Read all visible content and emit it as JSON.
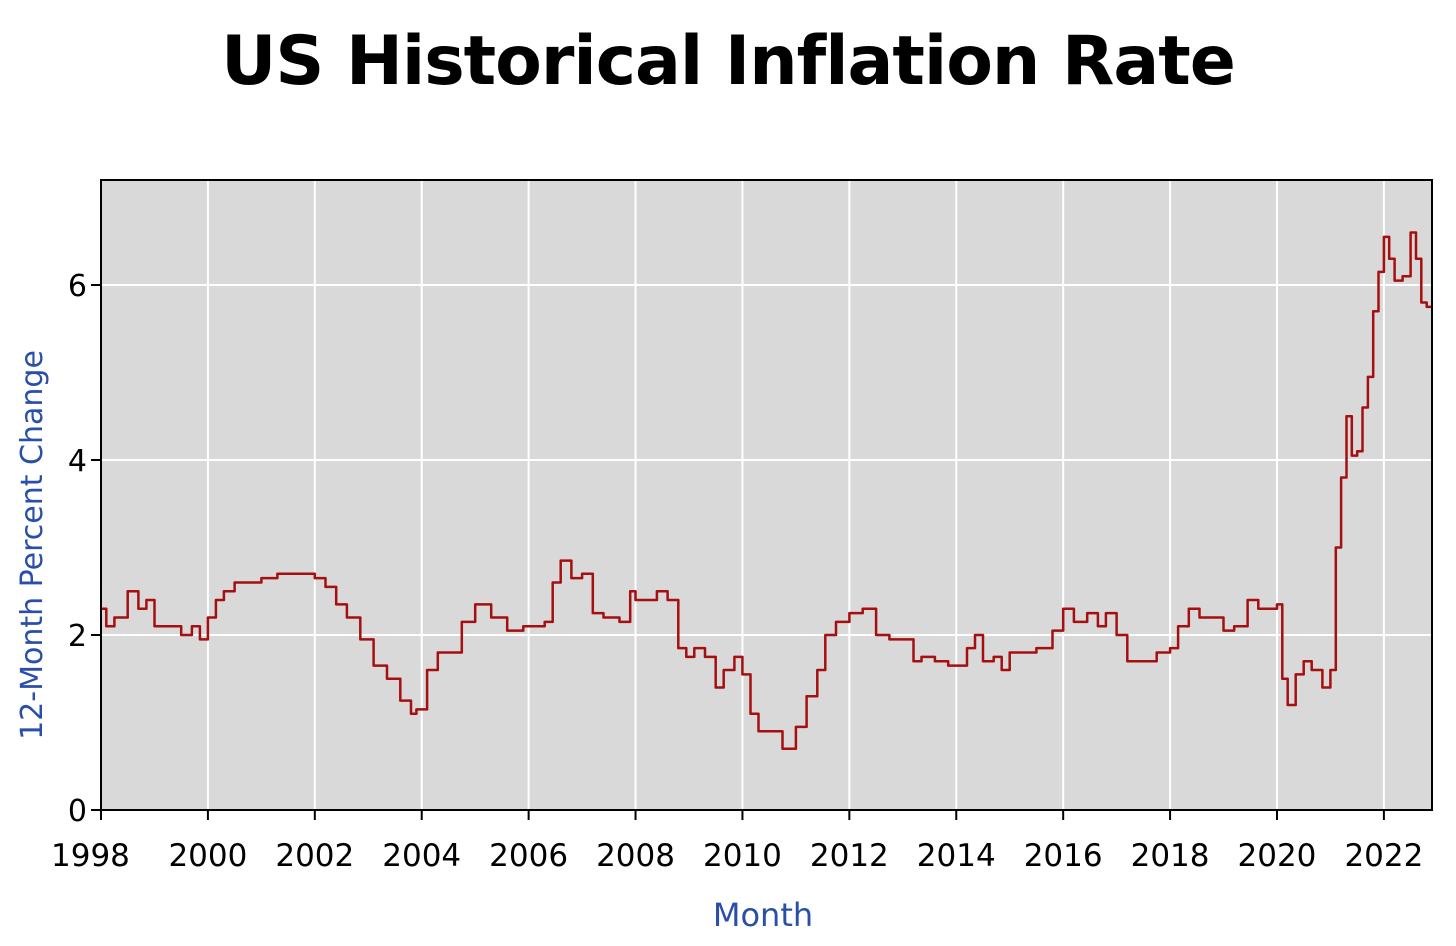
{
  "page": {
    "title": "US Historical Inflation Rate"
  },
  "chart_data": {
    "type": "line",
    "title": "US Historical Inflation Rate",
    "xlabel": "Month",
    "ylabel": "12-Month Percent Change",
    "xlim": [
      1998,
      2022.9
    ],
    "ylim": [
      0,
      7.2
    ],
    "x_ticks": [
      1998,
      2000,
      2002,
      2004,
      2006,
      2008,
      2010,
      2012,
      2014,
      2016,
      2018,
      2020,
      2022
    ],
    "x_tick_labels": [
      "1998",
      "2000",
      "2002",
      "2004",
      "2006",
      "2008",
      "2010",
      "2012",
      "2014",
      "2016",
      "2018",
      "2020",
      "2022"
    ],
    "y_ticks": [
      0,
      2,
      4,
      6
    ],
    "y_tick_labels": [
      "0",
      "2",
      "4",
      "6"
    ],
    "grid": true,
    "colors": {
      "plot_bg": "#d9d9d9",
      "grid": "#ffffff",
      "line": "#a50f0f",
      "axis_label": "#2a4fa8",
      "tick_text": "#000000"
    },
    "series": [
      {
        "x": [
          1998.0,
          1998.1,
          1998.25,
          1998.4,
          1998.5,
          1998.55,
          1998.7,
          1998.85,
          1999.0,
          1999.15,
          1999.3,
          1999.5,
          1999.7,
          1999.85,
          2000.0,
          2000.15,
          2000.3,
          2000.5,
          2000.75,
          2001.0,
          2001.3,
          2001.55,
          2001.8,
          2002.0,
          2002.2,
          2002.4,
          2002.6,
          2002.85,
          2003.1,
          2003.35,
          2003.6,
          2003.8,
          2003.9,
          2004.1,
          2004.3,
          2004.5,
          2004.75,
          2005.0,
          2005.3,
          2005.6,
          2005.9,
          2006.1,
          2006.3,
          2006.45,
          2006.6,
          2006.8,
          2007.0,
          2007.2,
          2007.4,
          2007.7,
          2007.9,
          2008.0,
          2008.2,
          2008.4,
          2008.6,
          2008.8,
          2008.95,
          2009.1,
          2009.3,
          2009.5,
          2009.65,
          2009.85,
          2010.0,
          2010.15,
          2010.3,
          2010.5,
          2010.75,
          2010.85,
          2011.0,
          2011.2,
          2011.4,
          2011.55,
          2011.75,
          2012.0,
          2012.25,
          2012.5,
          2012.75,
          2013.0,
          2013.2,
          2013.35,
          2013.6,
          2013.85,
          2014.0,
          2014.2,
          2014.35,
          2014.5,
          2014.7,
          2014.85,
          2015.0,
          2015.2,
          2015.5,
          2015.8,
          2016.0,
          2016.2,
          2016.45,
          2016.65,
          2016.8,
          2017.0,
          2017.2,
          2017.45,
          2017.75,
          2018.0,
          2018.15,
          2018.35,
          2018.55,
          2018.8,
          2019.0,
          2019.2,
          2019.45,
          2019.65,
          2019.85,
          2020.0,
          2020.1,
          2020.2,
          2020.35,
          2020.5,
          2020.65,
          2020.85,
          2021.0,
          2021.1,
          2021.2,
          2021.3,
          2021.4,
          2021.5,
          2021.6,
          2021.7,
          2021.8,
          2021.9,
          2022.0,
          2022.1,
          2022.2,
          2022.35,
          2022.5,
          2022.6,
          2022.7,
          2022.8,
          2022.9
        ],
        "y": [
          2.3,
          2.1,
          2.2,
          2.2,
          2.5,
          2.5,
          2.3,
          2.4,
          2.1,
          2.1,
          2.1,
          2.0,
          2.1,
          1.95,
          2.2,
          2.4,
          2.5,
          2.6,
          2.6,
          2.65,
          2.7,
          2.7,
          2.7,
          2.65,
          2.55,
          2.35,
          2.2,
          1.95,
          1.65,
          1.5,
          1.25,
          1.1,
          1.15,
          1.6,
          1.8,
          1.8,
          2.15,
          2.35,
          2.2,
          2.05,
          2.1,
          2.1,
          2.15,
          2.6,
          2.85,
          2.65,
          2.7,
          2.25,
          2.2,
          2.15,
          2.5,
          2.4,
          2.4,
          2.5,
          2.4,
          1.85,
          1.75,
          1.85,
          1.75,
          1.4,
          1.6,
          1.75,
          1.55,
          1.1,
          0.9,
          0.9,
          0.7,
          0.7,
          0.95,
          1.3,
          1.6,
          2.0,
          2.15,
          2.25,
          2.3,
          2.0,
          1.95,
          1.95,
          1.7,
          1.75,
          1.7,
          1.65,
          1.65,
          1.85,
          2.0,
          1.7,
          1.75,
          1.6,
          1.8,
          1.8,
          1.85,
          2.05,
          2.3,
          2.15,
          2.25,
          2.1,
          2.25,
          2.0,
          1.7,
          1.7,
          1.8,
          1.85,
          2.1,
          2.3,
          2.2,
          2.2,
          2.05,
          2.1,
          2.4,
          2.3,
          2.3,
          2.35,
          1.5,
          1.2,
          1.55,
          1.7,
          1.6,
          1.4,
          1.6,
          3.0,
          3.8,
          4.5,
          4.05,
          4.1,
          4.6,
          4.95,
          5.7,
          6.15,
          6.55,
          6.3,
          6.05,
          6.1,
          6.6,
          6.3,
          5.8,
          5.75,
          5.75
        ]
      }
    ]
  }
}
